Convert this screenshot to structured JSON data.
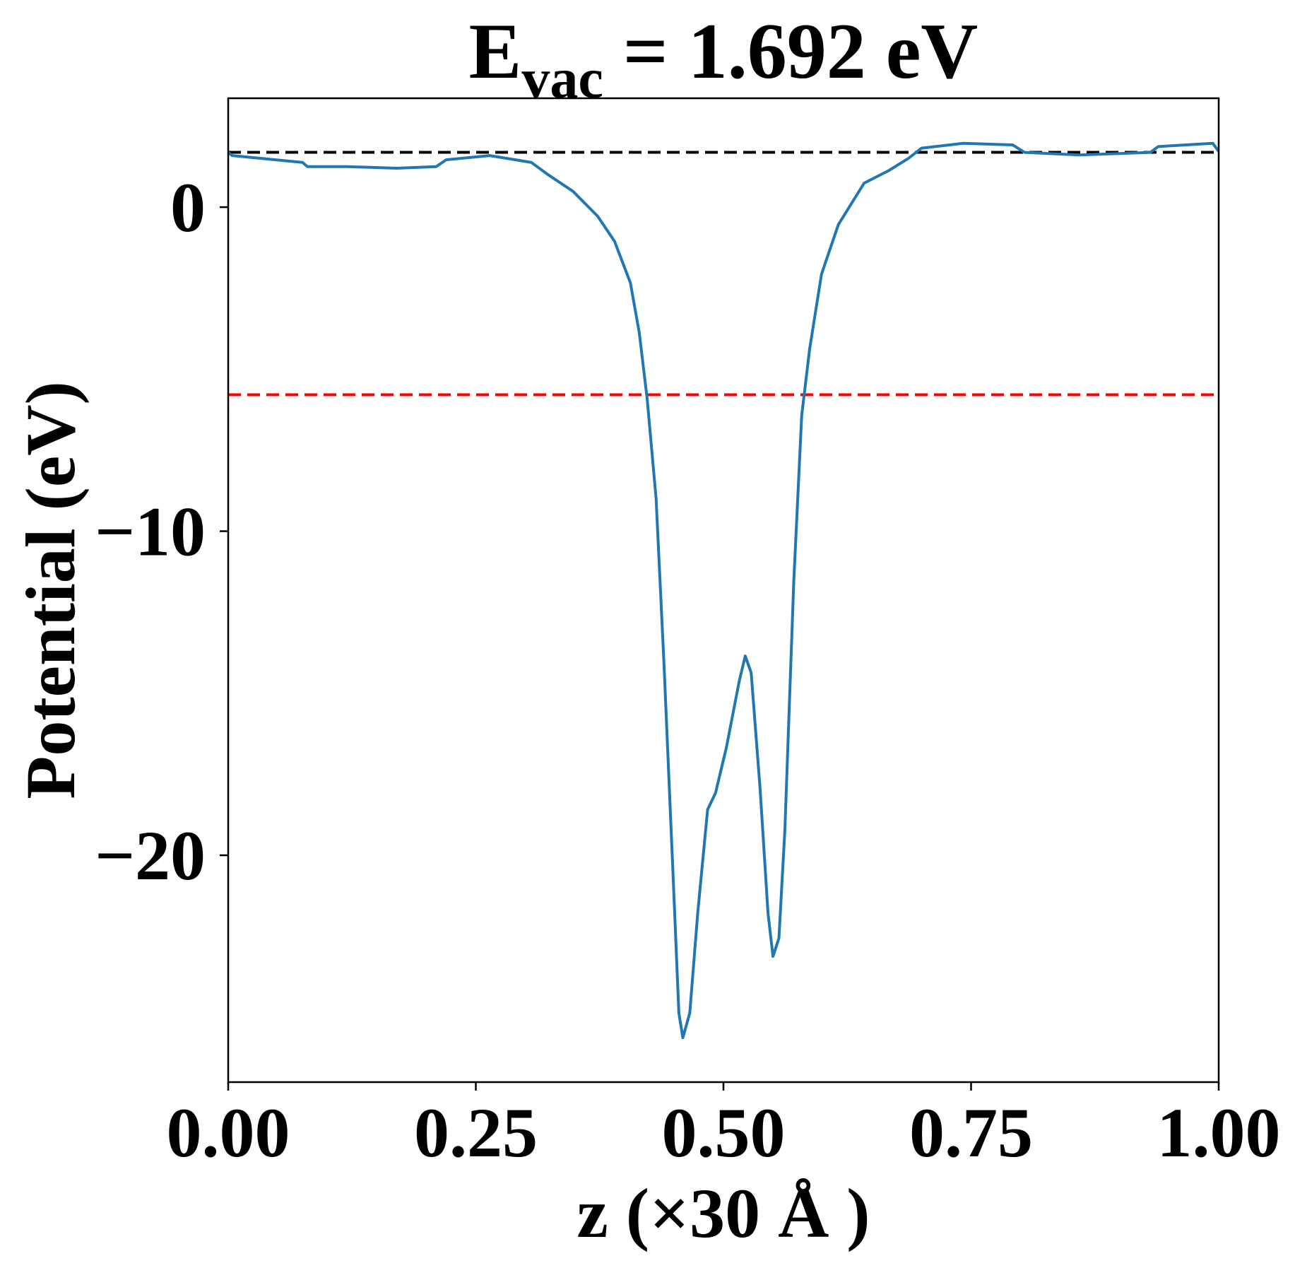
{
  "chart_data": {
    "type": "line",
    "title": "E",
    "title_subscript": "vac",
    "title_rest": " = 1.692 eV",
    "xlabel": "z (×30 Å )",
    "ylabel": "Potential (eV)",
    "xlim": [
      0,
      1
    ],
    "ylim": [
      -27.0,
      3.36
    ],
    "xticks": [
      {
        "value": 0,
        "label": "0.00"
      },
      {
        "value": 0.25,
        "label": "0.25"
      },
      {
        "value": 0.5,
        "label": "0.50"
      },
      {
        "value": 0.75,
        "label": "0.75"
      },
      {
        "value": 1,
        "label": "1.00"
      }
    ],
    "yticks": [
      0,
      {
        "value": -10,
        "label": "−10"
      },
      {
        "value": -20,
        "label": "−20"
      }
    ],
    "hlines": [
      {
        "value": 1.692,
        "color": "#000000"
      },
      {
        "value": -5.79,
        "color": "#ff0000"
      }
    ],
    "series": [
      {
        "color": "#1f77b4",
        "x": [
          0,
          0.004,
          0.075,
          0.08,
          0.12,
          0.17,
          0.21,
          0.22,
          0.264,
          0.306,
          0.323,
          0.348,
          0.373,
          0.39,
          0.406,
          0.415,
          0.423,
          0.432,
          0.44,
          0.449,
          0.455,
          0.459,
          0.466,
          0.474,
          0.484,
          0.492,
          0.503,
          0.516,
          0.522,
          0.528,
          0.537,
          0.545,
          0.55,
          0.556,
          0.562,
          0.571,
          0.579,
          0.587,
          0.599,
          0.616,
          0.642,
          0.667,
          0.687,
          0.7,
          0.742,
          0.792,
          0.804,
          0.859,
          0.931,
          0.939,
          0.994,
          1.0
        ],
        "values": [
          1.69,
          1.59,
          1.38,
          1.25,
          1.25,
          1.2,
          1.25,
          1.46,
          1.59,
          1.38,
          1.0,
          0.49,
          -0.28,
          -1.05,
          -2.33,
          -3.87,
          -5.92,
          -8.99,
          -14.11,
          -20.51,
          -24.87,
          -25.63,
          -24.87,
          -21.79,
          -18.59,
          -18.08,
          -16.67,
          -14.62,
          -13.85,
          -14.37,
          -17.95,
          -21.79,
          -23.12,
          -22.56,
          -19.23,
          -11.55,
          -6.43,
          -4.38,
          -2.07,
          -0.54,
          0.74,
          1.13,
          1.51,
          1.82,
          1.97,
          1.92,
          1.69,
          1.61,
          1.69,
          1.87,
          1.97,
          1.72
        ]
      }
    ]
  }
}
